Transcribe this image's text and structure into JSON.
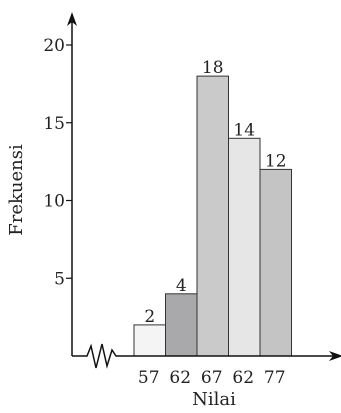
{
  "chart_data": {
    "type": "bar",
    "title": "",
    "xlabel": "Nilai",
    "ylabel": "Frekuensi",
    "categories": [
      "57",
      "62",
      "67",
      "62",
      "77"
    ],
    "values": [
      2,
      4,
      18,
      14,
      12
    ],
    "value_labels": [
      "2",
      "4",
      "18",
      "14",
      "12"
    ],
    "ylim": [
      0,
      20
    ],
    "yticks": [
      "5",
      "10",
      "15",
      "20"
    ],
    "ytick_values": [
      5,
      10,
      15,
      20
    ],
    "bar_colors": [
      "#f4f4f4",
      "#a9a9ab",
      "#cacaca",
      "#e6e6e6",
      "#c4c4c4"
    ],
    "grid": false,
    "axis_break": true,
    "histogram_style": true
  }
}
